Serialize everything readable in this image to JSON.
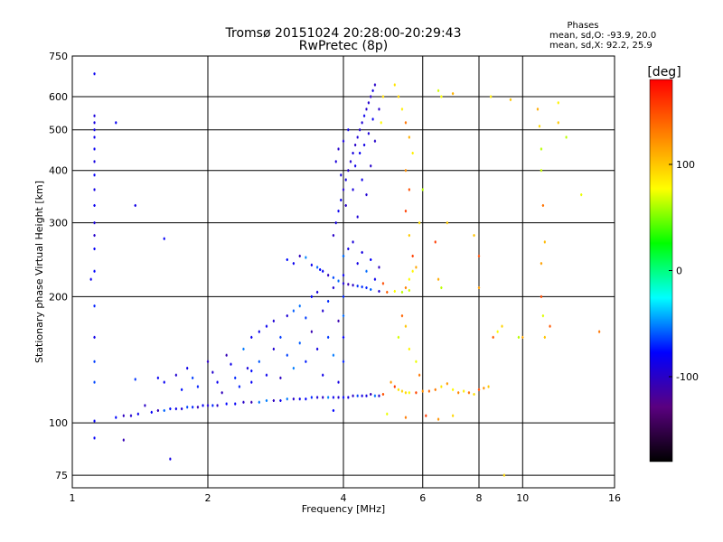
{
  "chart_data": {
    "type": "scatter",
    "title": "Tromsø 20151024 20:28:00-20:29:43",
    "subtitle": "RwPretec (8p)",
    "xlabel": "Frequency [MHz]",
    "ylabel": "Stationary phase Virtual Height [km]",
    "x_scale": "log",
    "y_scale": "log",
    "xlim": [
      1,
      16
    ],
    "ylim": [
      70,
      750
    ],
    "x_ticks": [
      "1",
      "2",
      "4",
      "6",
      "8",
      "10",
      "16"
    ],
    "y_ticks": [
      "75",
      "100",
      "200",
      "300",
      "400",
      "500",
      "600",
      "750"
    ],
    "grid": true,
    "phase_stats": {
      "heading": "Phases",
      "line_o": "mean, sd,O: -93.9, 20.0",
      "line_x": "mean, sd,X:  92.2, 25.9"
    },
    "colorbar": {
      "label": "[deg]",
      "range": [
        -180,
        180
      ],
      "ticks": [
        "100",
        "0",
        "-100"
      ],
      "colors": [
        "#000000",
        "#5a0080",
        "#0000ff",
        "#00ffff",
        "#00ff00",
        "#ffff00",
        "#ff8000",
        "#ff0000"
      ]
    },
    "series": [
      {
        "points": [
          [
            1.12,
            101
          ],
          [
            1.25,
            103
          ],
          [
            1.3,
            104
          ],
          [
            1.35,
            104
          ],
          [
            1.4,
            105
          ],
          [
            1.5,
            106
          ],
          [
            1.55,
            107
          ],
          [
            1.6,
            107
          ],
          [
            1.65,
            108
          ],
          [
            1.7,
            108
          ],
          [
            1.75,
            108
          ],
          [
            1.8,
            109
          ],
          [
            1.85,
            109
          ],
          [
            1.9,
            109
          ],
          [
            1.95,
            110
          ],
          [
            2.0,
            110
          ],
          [
            2.05,
            110
          ],
          [
            2.1,
            110
          ],
          [
            2.2,
            111
          ],
          [
            2.3,
            111
          ],
          [
            2.4,
            112
          ],
          [
            2.5,
            112
          ],
          [
            2.6,
            112
          ],
          [
            2.7,
            113
          ],
          [
            2.8,
            113
          ],
          [
            2.9,
            113
          ],
          [
            3.0,
            114
          ],
          [
            3.1,
            114
          ],
          [
            3.2,
            114
          ],
          [
            3.3,
            114
          ],
          [
            3.4,
            115
          ],
          [
            3.5,
            115
          ],
          [
            3.6,
            115
          ],
          [
            3.7,
            115
          ],
          [
            3.8,
            115
          ],
          [
            3.9,
            115
          ],
          [
            4.0,
            115
          ],
          [
            4.1,
            115
          ],
          [
            4.2,
            116
          ],
          [
            4.3,
            116
          ],
          [
            4.4,
            116
          ],
          [
            4.5,
            116
          ],
          [
            4.6,
            117
          ],
          [
            4.7,
            116
          ],
          [
            4.8,
            116
          ],
          [
            4.9,
            117
          ],
          [
            1.6,
            125
          ],
          [
            1.7,
            130
          ],
          [
            1.75,
            120
          ],
          [
            1.8,
            135
          ],
          [
            1.85,
            128
          ],
          [
            1.9,
            122
          ],
          [
            2.0,
            140
          ],
          [
            2.05,
            132
          ],
          [
            2.1,
            125
          ],
          [
            2.15,
            118
          ],
          [
            2.2,
            145
          ],
          [
            2.25,
            138
          ],
          [
            2.3,
            128
          ],
          [
            2.35,
            122
          ],
          [
            2.4,
            150
          ],
          [
            2.45,
            135
          ],
          [
            2.5,
            160
          ],
          [
            2.5,
            125
          ],
          [
            2.6,
            165
          ],
          [
            2.6,
            140
          ],
          [
            2.7,
            170
          ],
          [
            2.7,
            130
          ],
          [
            2.8,
            175
          ],
          [
            2.8,
            150
          ],
          [
            2.9,
            160
          ],
          [
            2.9,
            128
          ],
          [
            3.0,
            180
          ],
          [
            3.0,
            145
          ],
          [
            3.1,
            185
          ],
          [
            3.1,
            135
          ],
          [
            3.2,
            190
          ],
          [
            3.2,
            155
          ],
          [
            3.3,
            178
          ],
          [
            3.3,
            140
          ],
          [
            3.4,
            200
          ],
          [
            3.4,
            165
          ],
          [
            3.5,
            205
          ],
          [
            3.5,
            150
          ],
          [
            3.6,
            185
          ],
          [
            3.6,
            130
          ],
          [
            3.7,
            195
          ],
          [
            3.7,
            160
          ],
          [
            3.8,
            210
          ],
          [
            3.8,
            145
          ],
          [
            3.9,
            175
          ],
          [
            3.9,
            125
          ],
          [
            3.0,
            245
          ],
          [
            3.1,
            240
          ],
          [
            3.2,
            250
          ],
          [
            3.3,
            248
          ],
          [
            3.4,
            238
          ],
          [
            3.5,
            235
          ],
          [
            3.55,
            232
          ],
          [
            3.6,
            230
          ],
          [
            3.7,
            225
          ],
          [
            3.8,
            222
          ],
          [
            3.9,
            218
          ],
          [
            4.0,
            215
          ],
          [
            4.1,
            214
          ],
          [
            4.2,
            213
          ],
          [
            4.3,
            212
          ],
          [
            4.4,
            211
          ],
          [
            4.5,
            210
          ],
          [
            4.6,
            208
          ],
          [
            4.8,
            206
          ],
          [
            5.0,
            205
          ],
          [
            5.2,
            206
          ],
          [
            5.4,
            205
          ],
          [
            5.6,
            207
          ],
          [
            3.8,
            280
          ],
          [
            3.85,
            300
          ],
          [
            3.9,
            320
          ],
          [
            3.95,
            340
          ],
          [
            4.0,
            360
          ],
          [
            4.05,
            380
          ],
          [
            4.1,
            400
          ],
          [
            4.15,
            420
          ],
          [
            4.2,
            440
          ],
          [
            4.25,
            460
          ],
          [
            4.3,
            480
          ],
          [
            4.35,
            500
          ],
          [
            4.4,
            520
          ],
          [
            4.45,
            540
          ],
          [
            4.5,
            560
          ],
          [
            4.55,
            580
          ],
          [
            4.6,
            600
          ],
          [
            4.65,
            620
          ],
          [
            4.7,
            640
          ],
          [
            3.85,
            420
          ],
          [
            3.9,
            450
          ],
          [
            3.95,
            390
          ],
          [
            4.0,
            470
          ],
          [
            4.05,
            330
          ],
          [
            4.1,
            500
          ],
          [
            4.2,
            360
          ],
          [
            4.25,
            410
          ],
          [
            4.3,
            310
          ],
          [
            4.35,
            440
          ],
          [
            4.4,
            380
          ],
          [
            4.45,
            460
          ],
          [
            4.5,
            350
          ],
          [
            4.55,
            490
          ],
          [
            4.6,
            410
          ],
          [
            4.65,
            530
          ],
          [
            4.7,
            470
          ],
          [
            4.8,
            560
          ],
          [
            4.85,
            520
          ],
          [
            4.9,
            600
          ],
          [
            4.0,
            250
          ],
          [
            4.1,
            260
          ],
          [
            4.2,
            270
          ],
          [
            4.3,
            240
          ],
          [
            4.4,
            255
          ],
          [
            4.5,
            230
          ],
          [
            4.6,
            245
          ],
          [
            4.7,
            220
          ],
          [
            4.8,
            235
          ],
          [
            4.9,
            215
          ],
          [
            4.0,
            140
          ],
          [
            4.0,
            160
          ],
          [
            4.0,
            180
          ],
          [
            4.0,
            200
          ],
          [
            4.0,
            225
          ],
          [
            4.0,
            250
          ],
          [
            1.12,
            680
          ],
          [
            1.12,
            540
          ],
          [
            1.12,
            520
          ],
          [
            1.12,
            500
          ],
          [
            1.12,
            480
          ],
          [
            1.12,
            450
          ],
          [
            1.12,
            420
          ],
          [
            1.12,
            390
          ],
          [
            1.12,
            360
          ],
          [
            1.12,
            330
          ],
          [
            1.12,
            300
          ],
          [
            1.12,
            280
          ],
          [
            1.12,
            260
          ],
          [
            1.12,
            230
          ],
          [
            1.12,
            190
          ],
          [
            1.12,
            160
          ],
          [
            1.12,
            140
          ],
          [
            1.12,
            125
          ],
          [
            1.12,
            92
          ],
          [
            1.1,
            220
          ],
          [
            1.25,
            520
          ],
          [
            1.38,
            127
          ],
          [
            1.3,
            91
          ],
          [
            1.65,
            82
          ],
          [
            1.55,
            128
          ],
          [
            1.6,
            275
          ],
          [
            1.38,
            330
          ],
          [
            1.45,
            110
          ],
          [
            5.5,
            210
          ],
          [
            5.6,
            220
          ],
          [
            5.7,
            230
          ],
          [
            5.8,
            235
          ],
          [
            5.9,
            300
          ],
          [
            6.0,
            360
          ],
          [
            6.4,
            270
          ],
          [
            6.5,
            220
          ],
          [
            6.6,
            210
          ],
          [
            6.8,
            300
          ],
          [
            7.0,
            120
          ],
          [
            7.2,
            118
          ],
          [
            7.4,
            119
          ],
          [
            7.6,
            118
          ],
          [
            7.8,
            117
          ],
          [
            8.0,
            120
          ],
          [
            8.2,
            121
          ],
          [
            8.4,
            122
          ],
          [
            8.6,
            160
          ],
          [
            8.8,
            165
          ],
          [
            9.0,
            170
          ],
          [
            7.8,
            280
          ],
          [
            8.0,
            250
          ],
          [
            8.0,
            210
          ],
          [
            6.5,
            620
          ],
          [
            6.6,
            600
          ],
          [
            7.0,
            610
          ],
          [
            8.5,
            600
          ],
          [
            9.4,
            590
          ],
          [
            10.8,
            560
          ],
          [
            10.9,
            510
          ],
          [
            11.0,
            450
          ],
          [
            11.0,
            400
          ],
          [
            11.1,
            330
          ],
          [
            11.2,
            270
          ],
          [
            11.0,
            240
          ],
          [
            11.0,
            200
          ],
          [
            11.1,
            180
          ],
          [
            11.2,
            160
          ],
          [
            12.0,
            580
          ],
          [
            12.0,
            520
          ],
          [
            12.5,
            480
          ],
          [
            13.5,
            350
          ],
          [
            14.8,
            165
          ],
          [
            11.5,
            170
          ],
          [
            9.8,
            160
          ],
          [
            10.0,
            160
          ],
          [
            5.2,
            640
          ],
          [
            5.3,
            600
          ],
          [
            5.4,
            560
          ],
          [
            5.5,
            520
          ],
          [
            5.6,
            480
          ],
          [
            5.7,
            440
          ],
          [
            5.5,
            400
          ],
          [
            5.6,
            360
          ],
          [
            5.5,
            320
          ],
          [
            5.6,
            280
          ],
          [
            5.7,
            250
          ],
          [
            5.4,
            180
          ],
          [
            5.5,
            170
          ],
          [
            5.3,
            160
          ],
          [
            5.6,
            150
          ],
          [
            5.8,
            140
          ],
          [
            5.9,
            130
          ],
          [
            5.1,
            125
          ],
          [
            5.2,
            122
          ],
          [
            5.3,
            120
          ],
          [
            5.4,
            119
          ],
          [
            5.5,
            118
          ],
          [
            5.6,
            118
          ],
          [
            5.8,
            118
          ],
          [
            6.0,
            119
          ],
          [
            6.2,
            119
          ],
          [
            6.4,
            120
          ],
          [
            6.6,
            122
          ],
          [
            6.8,
            124
          ],
          [
            5.0,
            105
          ],
          [
            5.5,
            103
          ],
          [
            6.1,
            104
          ],
          [
            6.5,
            102
          ],
          [
            7.0,
            104
          ],
          [
            9.1,
            75
          ],
          [
            3.8,
            107
          ],
          [
            2.5,
            133
          ]
        ]
      }
    ]
  }
}
